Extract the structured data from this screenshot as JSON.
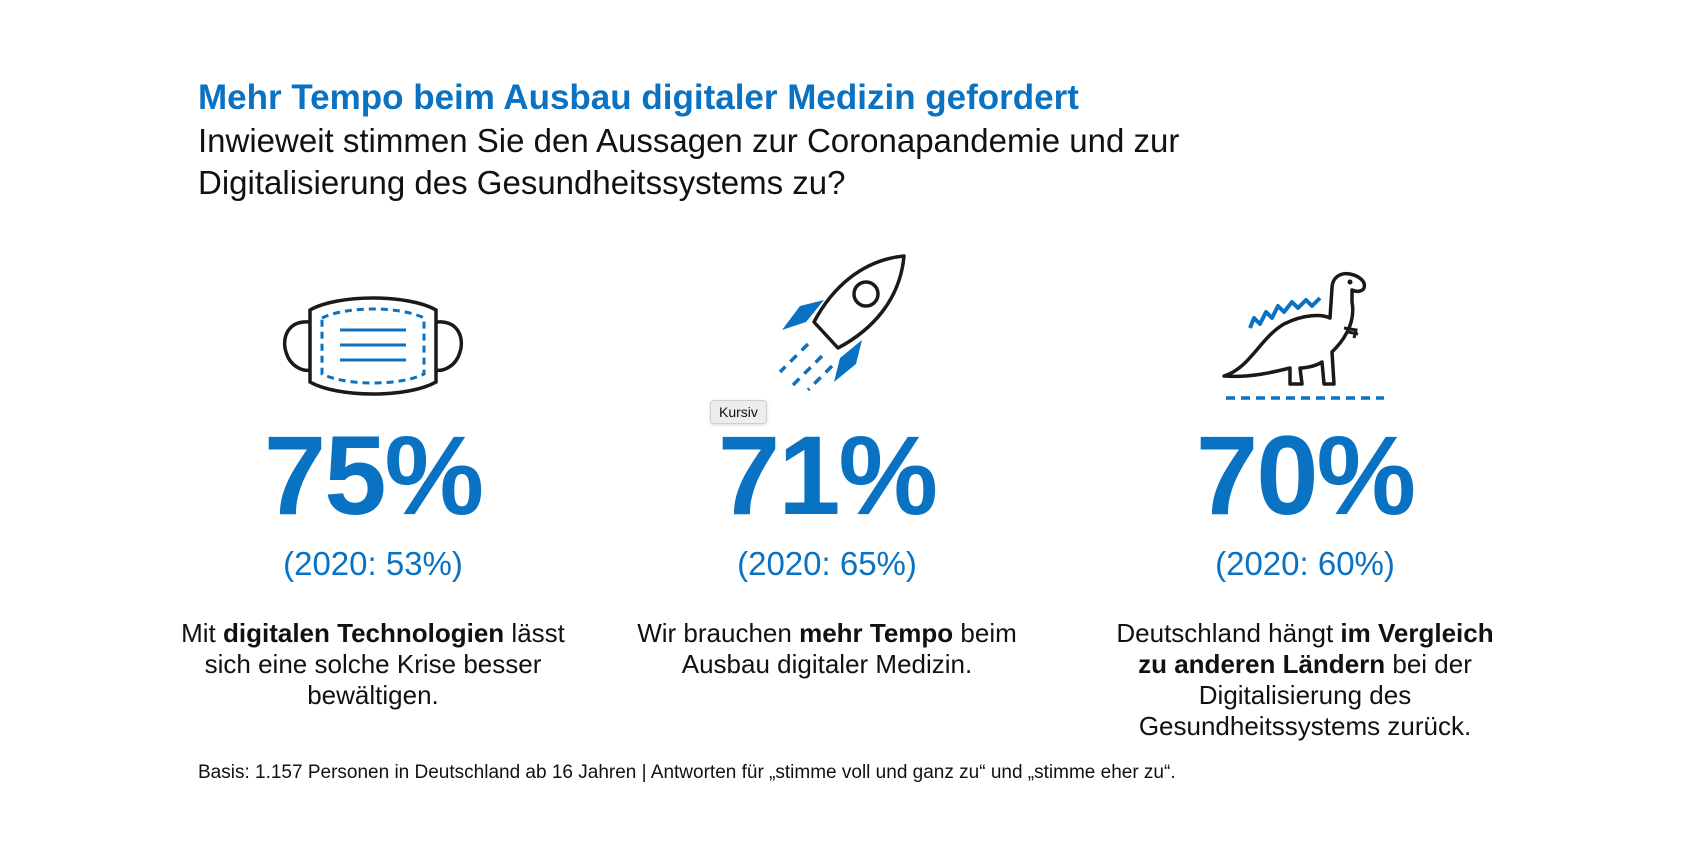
{
  "header": {
    "title": "Mehr Tempo beim Ausbau digitaler Medizin gefordert",
    "subtitle": "Inwieweit stimmen Sie den Aussagen zur Coronapandemie und zur Digitalisierung des Gesundheitssystems zu?"
  },
  "chart_data": {
    "type": "table",
    "title": "Mehr Tempo beim Ausbau digitaler Medizin gefordert",
    "subtitle": "Inwieweit stimmen Sie den Aussagen zur Coronapandemie und zur Digitalisierung des Gesundheitssystems zu?",
    "categories": [
      "Mit digitalen Technologien lässt sich eine solche Krise besser bewältigen.",
      "Wir brauchen mehr Tempo beim Ausbau digitaler Medizin.",
      "Deutschland hängt im Vergleich zu anderen Ländern bei der Digitalisierung des Gesundheitssystems zurück."
    ],
    "series": [
      {
        "values": [
          75,
          71,
          70
        ]
      },
      {
        "name": "2020",
        "values": [
          53,
          65,
          60
        ]
      }
    ],
    "unit": "%"
  },
  "stats": [
    {
      "icon": "face-mask-icon",
      "value_label": "75%",
      "prev_label": "(2020: 53%)",
      "text_pre": "Mit ",
      "text_bold": "digitalen Technologien",
      "text_post": " lässt sich eine solche Krise besser bewältigen."
    },
    {
      "icon": "rocket-icon",
      "value_label": "71%",
      "prev_label": "(2020: 65%)",
      "text_pre": "Wir brauchen ",
      "text_bold": "mehr Tempo",
      "text_post": " beim Ausbau digitaler Medizin."
    },
    {
      "icon": "dinosaur-icon",
      "value_label": "70%",
      "prev_label": "(2020: 60%)",
      "text_pre": "Deutschland hängt ",
      "text_bold": "im Vergleich zu anderen Ländern",
      "text_post": " bei der Digitalisierung des Gesundheitssystems zurück."
    }
  ],
  "tooltip": "Kursiv",
  "footnote": "Basis: 1.157 Personen in Deutschland ab 16 Jahren | Antworten für „stimme voll und ganz zu“ und „stimme eher zu“.",
  "colors": {
    "accent": "#0a72c2",
    "text": "#111111",
    "outline": "#1a1a1a"
  }
}
